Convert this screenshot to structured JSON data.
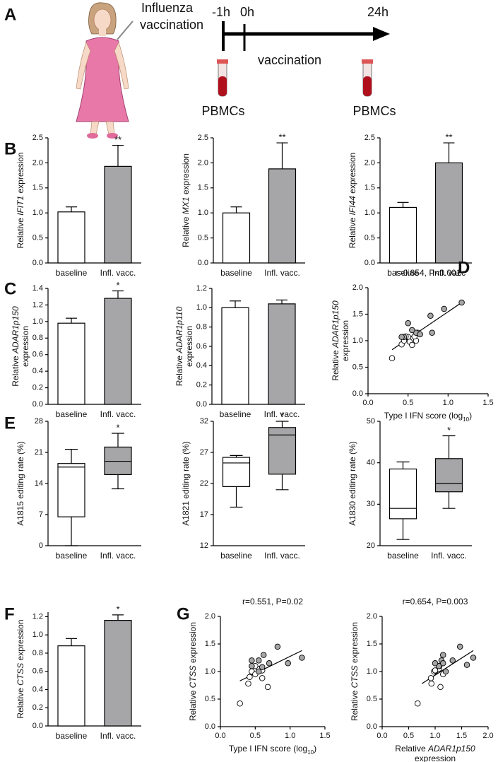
{
  "panel_a": {
    "letter": "A",
    "title_lines": [
      "Influenza",
      "vaccination"
    ],
    "timepoints": [
      "-1h",
      "0h",
      "24h"
    ],
    "event": "vaccination",
    "sample_labels": [
      "PBMCs",
      "PBMCs"
    ]
  },
  "chart_data": [
    {
      "type": "bar",
      "panel_letter": "B",
      "ylabel_lines": [
        [
          "Relative ",
          "IFIT1",
          " expression"
        ]
      ],
      "label_markup": "italic",
      "categories": [
        "baseline",
        "Infl. vacc."
      ],
      "values": [
        1.02,
        1.93
      ],
      "errors": [
        0.1,
        0.42
      ],
      "annotations": [
        null,
        "**"
      ],
      "colors": [
        "#ffffff",
        "#a6a6a8"
      ],
      "ylim": [
        0,
        2.5
      ],
      "yticks": [
        {
          "value": 0,
          "label": "0.0"
        },
        0.5,
        {
          "value": 1,
          "label": "1.0"
        },
        1.5,
        {
          "value": 2,
          "label": "2.0"
        },
        2.5
      ]
    },
    {
      "type": "bar",
      "ylabel_lines": [
        [
          "Relative ",
          "MX1",
          " expression"
        ]
      ],
      "label_markup": "italic",
      "categories": [
        "baseline",
        "Infl. vacc."
      ],
      "values": [
        1.0,
        1.88
      ],
      "errors": [
        0.12,
        0.52
      ],
      "annotations": [
        null,
        "**"
      ],
      "colors": [
        "#ffffff",
        "#a6a6a8"
      ],
      "ylim": [
        0,
        2.5
      ],
      "yticks": [
        {
          "value": 0,
          "label": "0.0"
        },
        0.5,
        {
          "value": 1,
          "label": "1.0"
        },
        1.5,
        {
          "value": 2,
          "label": "2.0"
        },
        2.5
      ]
    },
    {
      "type": "bar",
      "ylabel_lines": [
        [
          "Relative ",
          "IFI44",
          " expression"
        ]
      ],
      "label_markup": "italic",
      "categories": [
        "baseline",
        "Infl. vacc"
      ],
      "values": [
        1.11,
        2.0
      ],
      "errors": [
        0.1,
        0.4
      ],
      "annotations": [
        null,
        "**"
      ],
      "colors": [
        "#ffffff",
        "#a6a6a8"
      ],
      "ylim": [
        0,
        2.5
      ],
      "yticks": [
        {
          "value": 0,
          "label": "0.0"
        },
        0.5,
        {
          "value": 1,
          "label": "1.0"
        },
        1.5,
        {
          "value": 2,
          "label": "2.0"
        },
        2.5
      ]
    },
    {
      "type": "bar",
      "panel_letter": "C",
      "ylabel_lines": [
        [
          "Relative ",
          "ADAR1p150"
        ],
        [
          "expression"
        ]
      ],
      "label_markup": "italic",
      "categories": [
        "baseline",
        "Infl. vacc."
      ],
      "values": [
        0.98,
        1.28
      ],
      "errors": [
        0.06,
        0.09
      ],
      "annotations": [
        null,
        "*"
      ],
      "colors": [
        "#ffffff",
        "#a6a6a8"
      ],
      "ylim": [
        0,
        1.4
      ],
      "yticks": [
        {
          "value": 0,
          "label": "0.0"
        },
        0.2,
        0.4,
        0.6,
        0.8,
        {
          "value": 1,
          "label": "1.0"
        },
        1.2,
        1.4
      ]
    },
    {
      "type": "bar",
      "ylabel_lines": [
        [
          "Relative ",
          "ADAR1p110"
        ],
        [
          "expression"
        ]
      ],
      "label_markup": "italic",
      "categories": [
        "baseline",
        "Infl. vacc."
      ],
      "values": [
        1.0,
        1.04
      ],
      "errors": [
        0.07,
        0.04
      ],
      "annotations": [
        null,
        null
      ],
      "colors": [
        "#ffffff",
        "#a6a6a8"
      ],
      "ylim": [
        0,
        1.2
      ],
      "yticks": [
        {
          "value": 0,
          "label": "0.0"
        },
        0.2,
        0.4,
        0.6,
        0.8,
        {
          "value": 1,
          "label": "1.0"
        },
        1.2
      ]
    },
    {
      "type": "scatter",
      "panel_letter": "D",
      "annotation": "r=0.854, P<0.001",
      "ylabel_lines": [
        [
          "Relative ",
          "ADAR1p150"
        ],
        [
          "expression"
        ]
      ],
      "label_markup": "italic",
      "xlabel_lines": [
        [
          "Type I IFN score (log",
          "10",
          ")"
        ]
      ],
      "xlabel_markup": "subscript",
      "series": [
        {
          "color": "#ffffff",
          "x": [
            0.3,
            0.42,
            0.45,
            0.5,
            0.52,
            0.55,
            0.6,
            0.58,
            0.47,
            0.62
          ],
          "y": [
            0.67,
            0.93,
            1.0,
            1.07,
            0.98,
            0.92,
            1.0,
            1.08,
            1.08,
            1.15
          ]
        },
        {
          "color": "#a6a6a8",
          "x": [
            0.45,
            0.5,
            0.6,
            0.65,
            0.78,
            0.95,
            1.17,
            0.8,
            0.55,
            0.42
          ],
          "y": [
            1.07,
            1.33,
            1.15,
            1.12,
            1.47,
            1.6,
            1.72,
            1.15,
            1.2,
            1.07
          ]
        }
      ],
      "fit": {
        "x": [
          0.3,
          1.17
        ],
        "y": [
          0.83,
          1.72
        ]
      },
      "xlim": [
        0,
        1.5
      ],
      "xticks": [
        {
          "value": 0,
          "label": "0.0"
        },
        0.5,
        {
          "value": 1,
          "label": "1.0"
        },
        1.5
      ],
      "ylim": [
        0,
        2
      ],
      "yticks": [
        {
          "value": 0,
          "label": "0.0"
        },
        0.5,
        {
          "value": 1,
          "label": "1.0"
        },
        1.5,
        {
          "value": 2,
          "label": "2.0"
        }
      ]
    },
    {
      "type": "box",
      "panel_letter": "E",
      "ylabel_lines": [
        [
          "A1815 editing rate (%)"
        ]
      ],
      "label_markup": "italic",
      "categories": [
        "baseline",
        "Infl. vacc."
      ],
      "boxes": [
        {
          "min": 0,
          "q1": 6.5,
          "median": 17.7,
          "q3": 18.5,
          "max": 21.7
        },
        {
          "min": 12.8,
          "q1": 16,
          "median": 19,
          "q3": 22.2,
          "max": 25.3
        }
      ],
      "annotations": [
        null,
        "*"
      ],
      "colors": [
        "#ffffff",
        "#a6a6a8"
      ],
      "ylim": [
        0,
        28
      ],
      "yticks": [
        0,
        7,
        14,
        21,
        28
      ]
    },
    {
      "type": "box",
      "ylabel_lines": [
        [
          "A1821 editing rate (%)"
        ]
      ],
      "label_markup": "italic",
      "categories": [
        "baseline",
        "Infl. vacc."
      ],
      "boxes": [
        {
          "min": 18.2,
          "q1": 21.5,
          "median": 25.3,
          "q3": 26.2,
          "max": 26.5
        },
        {
          "min": 21,
          "q1": 23.5,
          "median": 29.8,
          "q3": 31,
          "max": 32
        }
      ],
      "annotations": [
        null,
        "*"
      ],
      "colors": [
        "#ffffff",
        "#a6a6a8"
      ],
      "ylim": [
        12,
        32
      ],
      "yticks": [
        12,
        17,
        22,
        27,
        32
      ]
    },
    {
      "type": "box",
      "ylabel_lines": [
        [
          "A1830 editing rate (%)"
        ]
      ],
      "label_markup": "italic",
      "categories": [
        "baseline",
        "Infl. vacc."
      ],
      "boxes": [
        {
          "min": 21.5,
          "q1": 26.5,
          "median": 29,
          "q3": 38.5,
          "max": 40.2
        },
        {
          "min": 29,
          "q1": 33,
          "median": 35,
          "q3": 41,
          "max": 46.5
        }
      ],
      "annotations": [
        null,
        "*"
      ],
      "colors": [
        "#ffffff",
        "#a6a6a8"
      ],
      "ylim": [
        20,
        50
      ],
      "yticks": [
        20,
        30,
        40,
        50
      ]
    },
    {
      "type": "bar",
      "panel_letter": "F",
      "ylabel_lines": [
        [
          "Relative ",
          "CTSS",
          " expression"
        ]
      ],
      "label_markup": "italic",
      "categories": [
        "baseline",
        "Infl. vacc."
      ],
      "values": [
        0.88,
        1.16
      ],
      "errors": [
        0.08,
        0.06
      ],
      "annotations": [
        null,
        "*"
      ],
      "colors": [
        "#ffffff",
        "#a6a6a8"
      ],
      "ylim": [
        0,
        1.25
      ],
      "yticks": [
        {
          "value": 0,
          "label": "0.0"
        },
        0.2,
        0.4,
        0.6,
        0.8,
        {
          "value": 1,
          "label": "1.0"
        },
        1.2
      ]
    },
    {
      "type": "scatter",
      "panel_letter": "G",
      "annotation": "r=0.551, P=0.02",
      "ylabel_lines": [
        [
          "Relative ",
          "CTSS",
          " expression"
        ]
      ],
      "label_markup": "italic",
      "xlabel_lines": [
        [
          "Type I IFN score (log",
          "10",
          ")"
        ]
      ],
      "xlabel_markup": "subscript",
      "series": [
        {
          "color": "#ffffff",
          "x": [
            0.28,
            0.4,
            0.42,
            0.45,
            0.5,
            0.55,
            0.6,
            0.68,
            0.5,
            0.6
          ],
          "y": [
            0.42,
            0.78,
            0.9,
            1.0,
            0.95,
            1.05,
            1.02,
            0.72,
            1.1,
            0.88
          ]
        },
        {
          "color": "#a6a6a8",
          "x": [
            0.45,
            0.45,
            0.55,
            0.62,
            0.7,
            0.82,
            0.97,
            1.17,
            0.55,
            0.6
          ],
          "y": [
            1.1,
            1.2,
            1.2,
            1.3,
            1.15,
            1.45,
            1.15,
            1.25,
            1.0,
            1.08
          ]
        }
      ],
      "fit": {
        "x": [
          0.28,
          1.17
        ],
        "y": [
          0.83,
          1.38
        ]
      },
      "xlim": [
        0,
        1.5
      ],
      "xticks": [
        {
          "value": 0,
          "label": "0.0"
        },
        0.5,
        {
          "value": 1,
          "label": "1.0"
        },
        1.5
      ],
      "ylim": [
        0,
        2
      ],
      "yticks": [
        {
          "value": 0,
          "label": "0.0"
        },
        0.5,
        {
          "value": 1,
          "label": "1.0"
        },
        1.5,
        {
          "value": 2,
          "label": "2.0"
        }
      ]
    },
    {
      "type": "scatter",
      "annotation": "r=0.654, P=0.003",
      "ylabel_lines": [
        [
          "Relative ",
          "CTSS",
          " expression"
        ]
      ],
      "label_markup": "italic",
      "xlabel_lines": [
        [
          "Relative ",
          "ADAR1p150"
        ],
        [
          "expression"
        ]
      ],
      "xlabel_markup": "italic",
      "series": [
        {
          "color": "#ffffff",
          "x": [
            0.67,
            0.93,
            1.0,
            1.07,
            0.98,
            0.92,
            1.1,
            1.08,
            1.0,
            1.15
          ],
          "y": [
            0.42,
            0.78,
            1.0,
            1.05,
            1.0,
            0.88,
            0.72,
            1.1,
            1.02,
            0.95
          ]
        },
        {
          "color": "#a6a6a8",
          "x": [
            1.07,
            1.33,
            1.15,
            1.12,
            1.47,
            1.6,
            1.72,
            1.15,
            1.2,
            1.0
          ],
          "y": [
            1.1,
            1.2,
            1.3,
            1.2,
            1.45,
            1.12,
            1.25,
            1.15,
            1.0,
            1.15
          ]
        }
      ],
      "fit": {
        "x": [
          0.75,
          1.72
        ],
        "y": [
          0.78,
          1.38
        ]
      },
      "xlim": [
        0,
        2
      ],
      "xticks": [
        {
          "value": 0,
          "label": "0.0"
        },
        0.5,
        {
          "value": 1,
          "label": "1.0"
        },
        1.5,
        {
          "value": 2,
          "label": "2.0"
        }
      ],
      "ylim": [
        0,
        2
      ],
      "yticks": [
        {
          "value": 0,
          "label": "0.0"
        },
        0.5,
        {
          "value": 1,
          "label": "1.0"
        },
        1.5,
        {
          "value": 2,
          "label": "2.0"
        }
      ]
    }
  ]
}
